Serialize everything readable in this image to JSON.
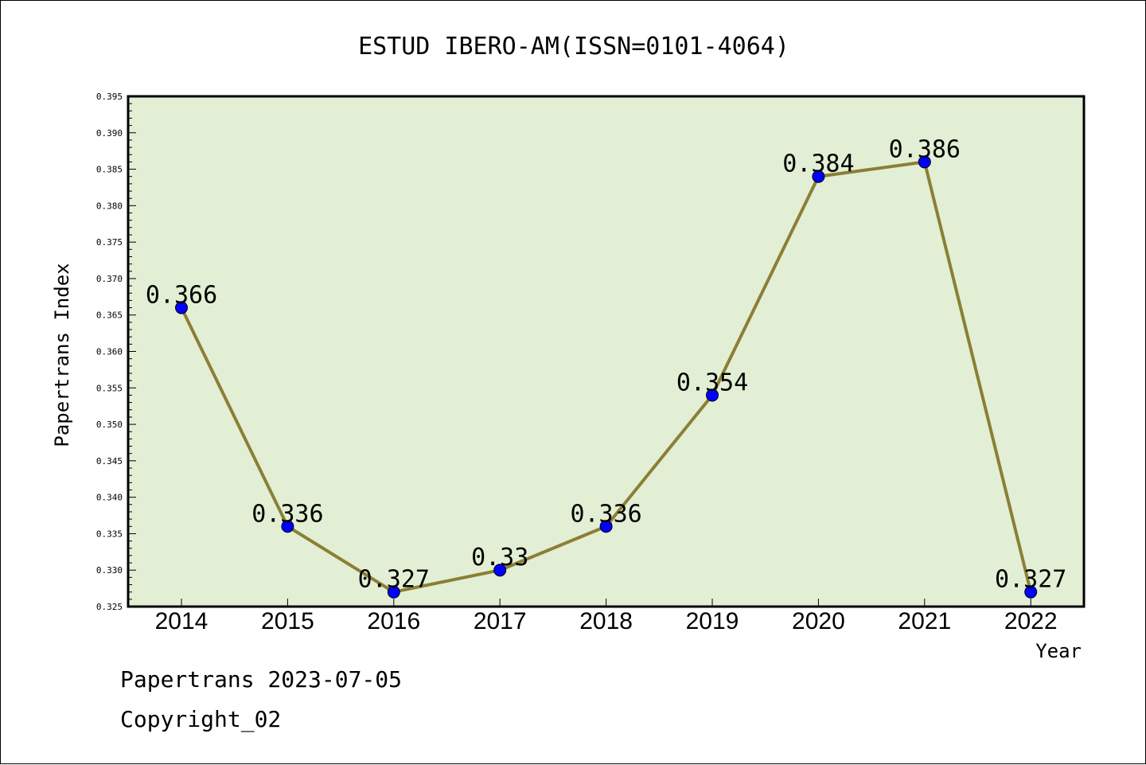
{
  "chart_data": {
    "type": "line",
    "title": "ESTUD IBERO-AM(ISSN=0101-4064)",
    "xlabel": "Year",
    "ylabel": "Papertrans Index",
    "categories": [
      "2014",
      "2015",
      "2016",
      "2017",
      "2018",
      "2019",
      "2020",
      "2021",
      "2022"
    ],
    "series": [
      {
        "values": [
          0.366,
          0.336,
          0.327,
          0.33,
          0.336,
          0.354,
          0.384,
          0.386,
          0.327
        ],
        "labels": [
          "0.366",
          "0.336",
          "0.327",
          "0.33",
          "0.336",
          "0.354",
          "0.384",
          "0.386",
          "0.327"
        ]
      }
    ],
    "ylim": [
      0.325,
      0.395
    ],
    "yticks": [
      "0.325",
      "0.330",
      "0.335",
      "0.340",
      "0.345",
      "0.350",
      "0.355",
      "0.360",
      "0.365",
      "0.370",
      "0.375",
      "0.380",
      "0.385",
      "0.390",
      "0.395"
    ],
    "grid": false,
    "legend": "none",
    "colors": {
      "plot_background": "#e2efd5",
      "line": "#8b7f35",
      "marker": "#0000ff"
    }
  },
  "footer": {
    "line1": "Papertrans 2023-07-05",
    "line2": "Copyright_02"
  }
}
